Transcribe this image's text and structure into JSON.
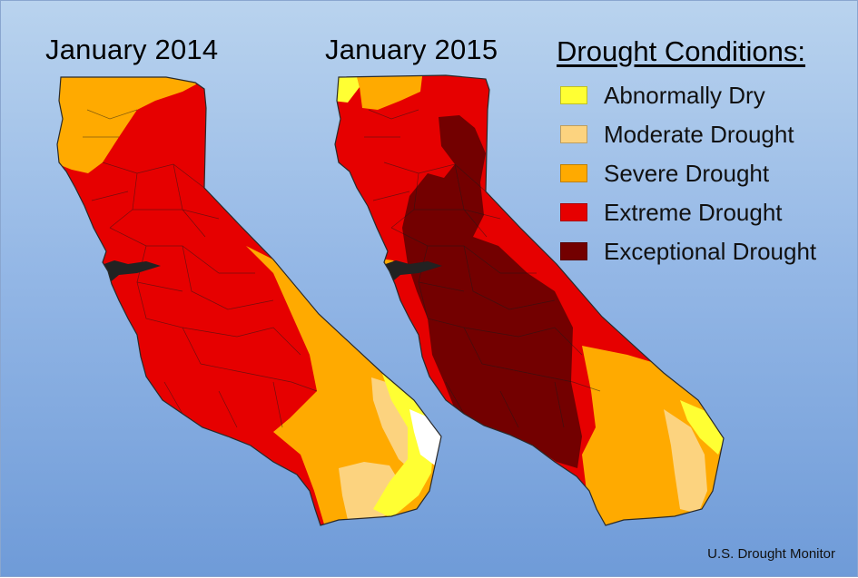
{
  "maps": [
    {
      "title": "January 2014"
    },
    {
      "title": "January 2015"
    }
  ],
  "legend": {
    "title": "Drought Conditions:",
    "items": [
      {
        "label": "Abnormally Dry",
        "color": "#ffff33"
      },
      {
        "label": "Moderate Drought",
        "color": "#fcd37f"
      },
      {
        "label": "Severe Drought",
        "color": "#ffaa00"
      },
      {
        "label": "Extreme Drought",
        "color": "#e60000"
      },
      {
        "label": "Exceptional Drought",
        "color": "#730000"
      }
    ]
  },
  "source": "U.S. Drought Monitor"
}
